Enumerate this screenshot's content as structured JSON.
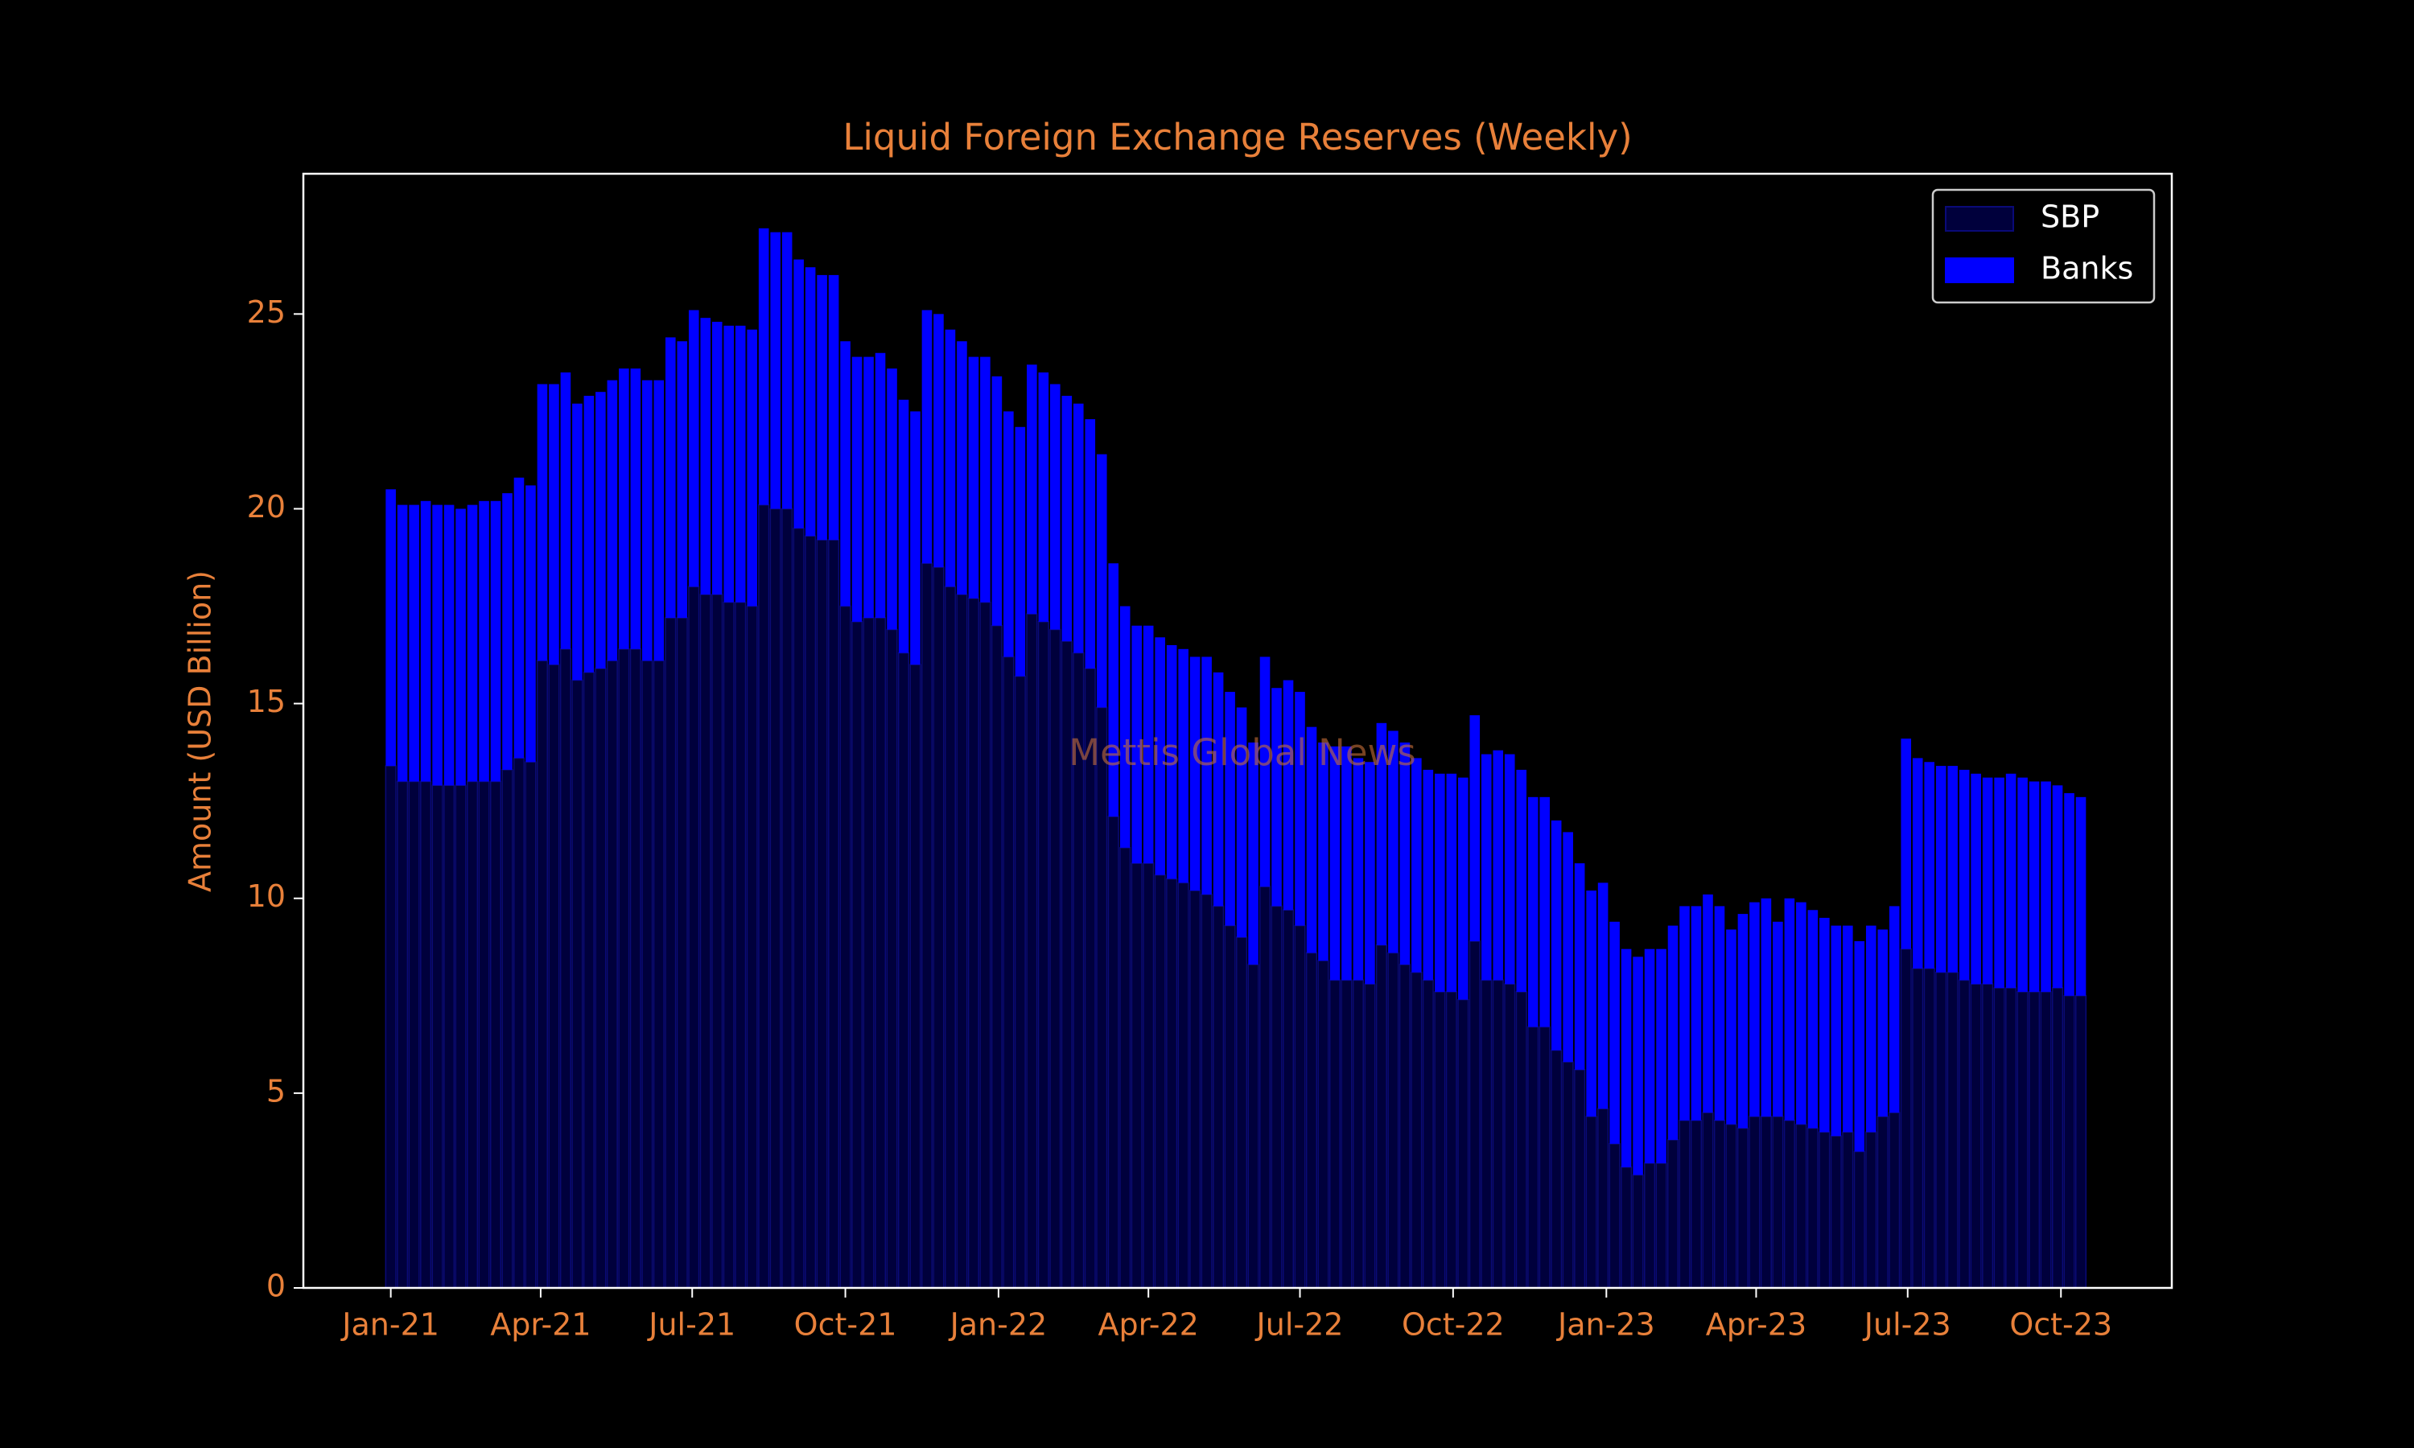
{
  "chart_data": {
    "type": "bar",
    "stacked": true,
    "title": "Liquid Foreign Exchange Reserves (Weekly)",
    "ylabel": "Amount (USD Billion)",
    "annotation": "Mettis Global News",
    "legend": "upper right",
    "categories": [
      null,
      null,
      null,
      null,
      null,
      null,
      null,
      null,
      null,
      null,
      null,
      null,
      null,
      null,
      null,
      null,
      null,
      null,
      null,
      null,
      null,
      null,
      null,
      null,
      null,
      null,
      null,
      null,
      null,
      null,
      null,
      null,
      null,
      null,
      null,
      null,
      null,
      null,
      null,
      null,
      null,
      null,
      null,
      null,
      null,
      null,
      null,
      null,
      null,
      null,
      null,
      null,
      null,
      null,
      null,
      null,
      null,
      null,
      null,
      null,
      null,
      null,
      null,
      null,
      null,
      null,
      null,
      null,
      null,
      null,
      null,
      null,
      null,
      null,
      null,
      null,
      null,
      null,
      null,
      null,
      null,
      null,
      null,
      null,
      null,
      null,
      null,
      null,
      null,
      null,
      null,
      null,
      null,
      null,
      null,
      null,
      null,
      null,
      null,
      null,
      null,
      null,
      null,
      null,
      null,
      null,
      null,
      null,
      null,
      null,
      null,
      null,
      null,
      null,
      null,
      null,
      null,
      null,
      null,
      null,
      null,
      null,
      null,
      null,
      null,
      null,
      null,
      null,
      null,
      null,
      null,
      null,
      null,
      null,
      null,
      null,
      null,
      null,
      null,
      null,
      null,
      null,
      null,
      null,
      null,
      null
    ],
    "series": [
      {
        "name": "SBP",
        "color": "#00003c",
        "edgecolor": "#0a0a78",
        "values": [
          13.4,
          13.0,
          13.0,
          13.0,
          12.9,
          12.9,
          12.9,
          13.0,
          13.0,
          13.0,
          13.3,
          13.6,
          13.5,
          16.1,
          16.0,
          16.4,
          15.6,
          15.8,
          15.9,
          16.1,
          16.4,
          16.4,
          16.1,
          16.1,
          17.2,
          17.2,
          18.0,
          17.8,
          17.8,
          17.6,
          17.6,
          17.5,
          20.1,
          20.0,
          20.0,
          19.5,
          19.3,
          19.2,
          19.2,
          17.5,
          17.1,
          17.2,
          17.2,
          16.9,
          16.3,
          16.0,
          18.6,
          18.5,
          18.0,
          17.8,
          17.7,
          17.6,
          17.0,
          16.2,
          15.7,
          17.3,
          17.1,
          16.9,
          16.6,
          16.3,
          15.9,
          14.9,
          12.1,
          11.3,
          10.9,
          10.9,
          10.6,
          10.5,
          10.4,
          10.2,
          10.1,
          9.8,
          9.3,
          9.0,
          8.3,
          10.3,
          9.8,
          9.7,
          9.3,
          8.6,
          8.4,
          7.9,
          7.9,
          7.9,
          7.8,
          8.8,
          8.6,
          8.3,
          8.1,
          7.9,
          7.6,
          7.6,
          7.4,
          8.9,
          7.9,
          7.9,
          7.8,
          7.6,
          6.7,
          6.7,
          6.1,
          5.8,
          5.6,
          4.4,
          4.6,
          3.7,
          3.1,
          2.9,
          3.2,
          3.2,
          3.8,
          4.3,
          4.3,
          4.5,
          4.3,
          4.2,
          4.1,
          4.4,
          4.4,
          4.4,
          4.3,
          4.2,
          4.1,
          4.0,
          3.9,
          4.0,
          3.5,
          4.0,
          4.4,
          4.5,
          8.7,
          8.2,
          8.2,
          8.1,
          8.1,
          7.9,
          7.8,
          7.8,
          7.7,
          7.7,
          7.6,
          7.6,
          7.6,
          7.7,
          7.5,
          7.5
        ]
      },
      {
        "name": "Banks",
        "color": "#0000ff",
        "values": [
          7.1,
          7.1,
          7.1,
          7.2,
          7.2,
          7.2,
          7.1,
          7.1,
          7.2,
          7.2,
          7.1,
          7.2,
          7.1,
          7.1,
          7.2,
          7.1,
          7.1,
          7.1,
          7.1,
          7.2,
          7.2,
          7.2,
          7.2,
          7.2,
          7.2,
          7.1,
          7.1,
          7.1,
          7.0,
          7.1,
          7.1,
          7.1,
          7.1,
          7.1,
          7.1,
          6.9,
          6.9,
          6.8,
          6.8,
          6.8,
          6.8,
          6.7,
          6.8,
          6.7,
          6.5,
          6.5,
          6.5,
          6.5,
          6.6,
          6.5,
          6.2,
          6.3,
          6.4,
          6.3,
          6.4,
          6.4,
          6.4,
          6.3,
          6.3,
          6.4,
          6.4,
          6.5,
          6.5,
          6.2,
          6.1,
          6.1,
          6.1,
          6.0,
          6.0,
          6.0,
          6.1,
          6.0,
          6.0,
          5.9,
          5.7,
          5.9,
          5.6,
          5.9,
          6.0,
          5.8,
          5.6,
          6.0,
          6.0,
          5.7,
          5.7,
          5.7,
          5.7,
          5.7,
          5.5,
          5.4,
          5.6,
          5.6,
          5.7,
          5.8,
          5.8,
          5.9,
          5.9,
          5.7,
          5.9,
          5.9,
          5.9,
          5.9,
          5.3,
          5.8,
          5.8,
          5.7,
          5.6,
          5.6,
          5.5,
          5.5,
          5.5,
          5.5,
          5.5,
          5.6,
          5.5,
          5.0,
          5.5,
          5.5,
          5.6,
          5.0,
          5.7,
          5.7,
          5.6,
          5.5,
          5.4,
          5.3,
          5.4,
          5.3,
          4.8,
          5.3,
          5.4,
          5.4,
          5.3,
          5.3,
          5.3,
          5.4,
          5.4,
          5.3,
          5.4,
          5.5,
          5.5,
          5.4,
          5.4,
          5.2,
          5.2,
          5.1
        ]
      }
    ],
    "xlim": [
      -7.5,
      152.8
    ],
    "xticks": [
      {
        "value": 0,
        "label": "Jan-21"
      },
      {
        "value": 12.86,
        "label": "Apr-21"
      },
      {
        "value": 25.86,
        "label": "Jul-21"
      },
      {
        "value": 39,
        "label": "Oct-21"
      },
      {
        "value": 52.14,
        "label": "Jan-22"
      },
      {
        "value": 65,
        "label": "Apr-22"
      },
      {
        "value": 78,
        "label": "Jul-22"
      },
      {
        "value": 91.14,
        "label": "Oct-22"
      },
      {
        "value": 104.29,
        "label": "Jan-23"
      },
      {
        "value": 117.14,
        "label": "Apr-23"
      },
      {
        "value": 130.14,
        "label": "Jul-23"
      },
      {
        "value": 143.29,
        "label": "Oct-23"
      }
    ],
    "ylim": [
      0,
      28.6
    ],
    "yticks": [
      0,
      5,
      10,
      15,
      20,
      25
    ],
    "grid": false
  }
}
